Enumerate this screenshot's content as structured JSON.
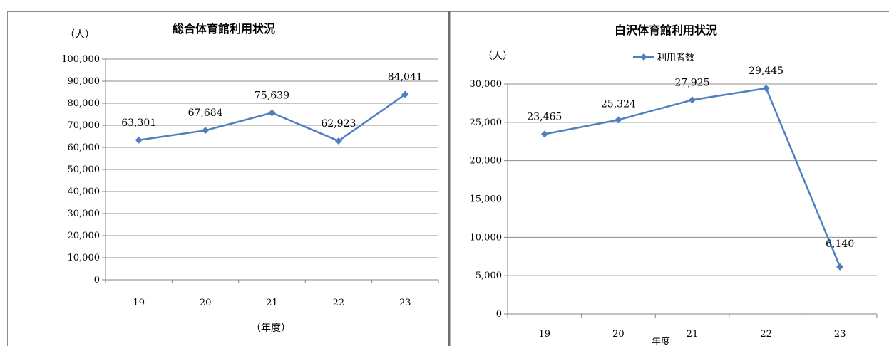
{
  "chart_data": [
    {
      "type": "line",
      "title": "総合体育館利用状況",
      "ylabel": "（人）",
      "xlabel": "（年度）",
      "categories": [
        "19",
        "20",
        "21",
        "22",
        "23"
      ],
      "series": [
        {
          "values": [
            63301,
            67684,
            75639,
            62923,
            84041
          ]
        }
      ],
      "data_labels": [
        "63,301",
        "67,684",
        "75,639",
        "62,923",
        "84,041"
      ],
      "ylim": [
        0,
        100000
      ],
      "yticks": [
        "0",
        "10,000",
        "20,000",
        "30,000",
        "40,000",
        "50,000",
        "60,000",
        "70,000",
        "80,000",
        "90,000",
        "100,000"
      ],
      "grid": true,
      "legend": null,
      "line_color": "#4F7FBE"
    },
    {
      "type": "line",
      "title": "白沢体育館利用状況",
      "ylabel": "（人）",
      "xlabel": "年度",
      "categories": [
        "19",
        "20",
        "21",
        "22",
        "23"
      ],
      "series": [
        {
          "name": "利用者数",
          "values": [
            23465,
            25324,
            27925,
            29445,
            6140
          ]
        }
      ],
      "data_labels": [
        "23,465",
        "25,324",
        "27,925",
        "29,445",
        "6,140"
      ],
      "ylim": [
        0,
        30000
      ],
      "yticks": [
        "0",
        "5,000",
        "10,000",
        "15,000",
        "20,000",
        "25,000",
        "30,000"
      ],
      "grid": true,
      "legend": "top-center",
      "line_color": "#4F7FBE"
    }
  ]
}
